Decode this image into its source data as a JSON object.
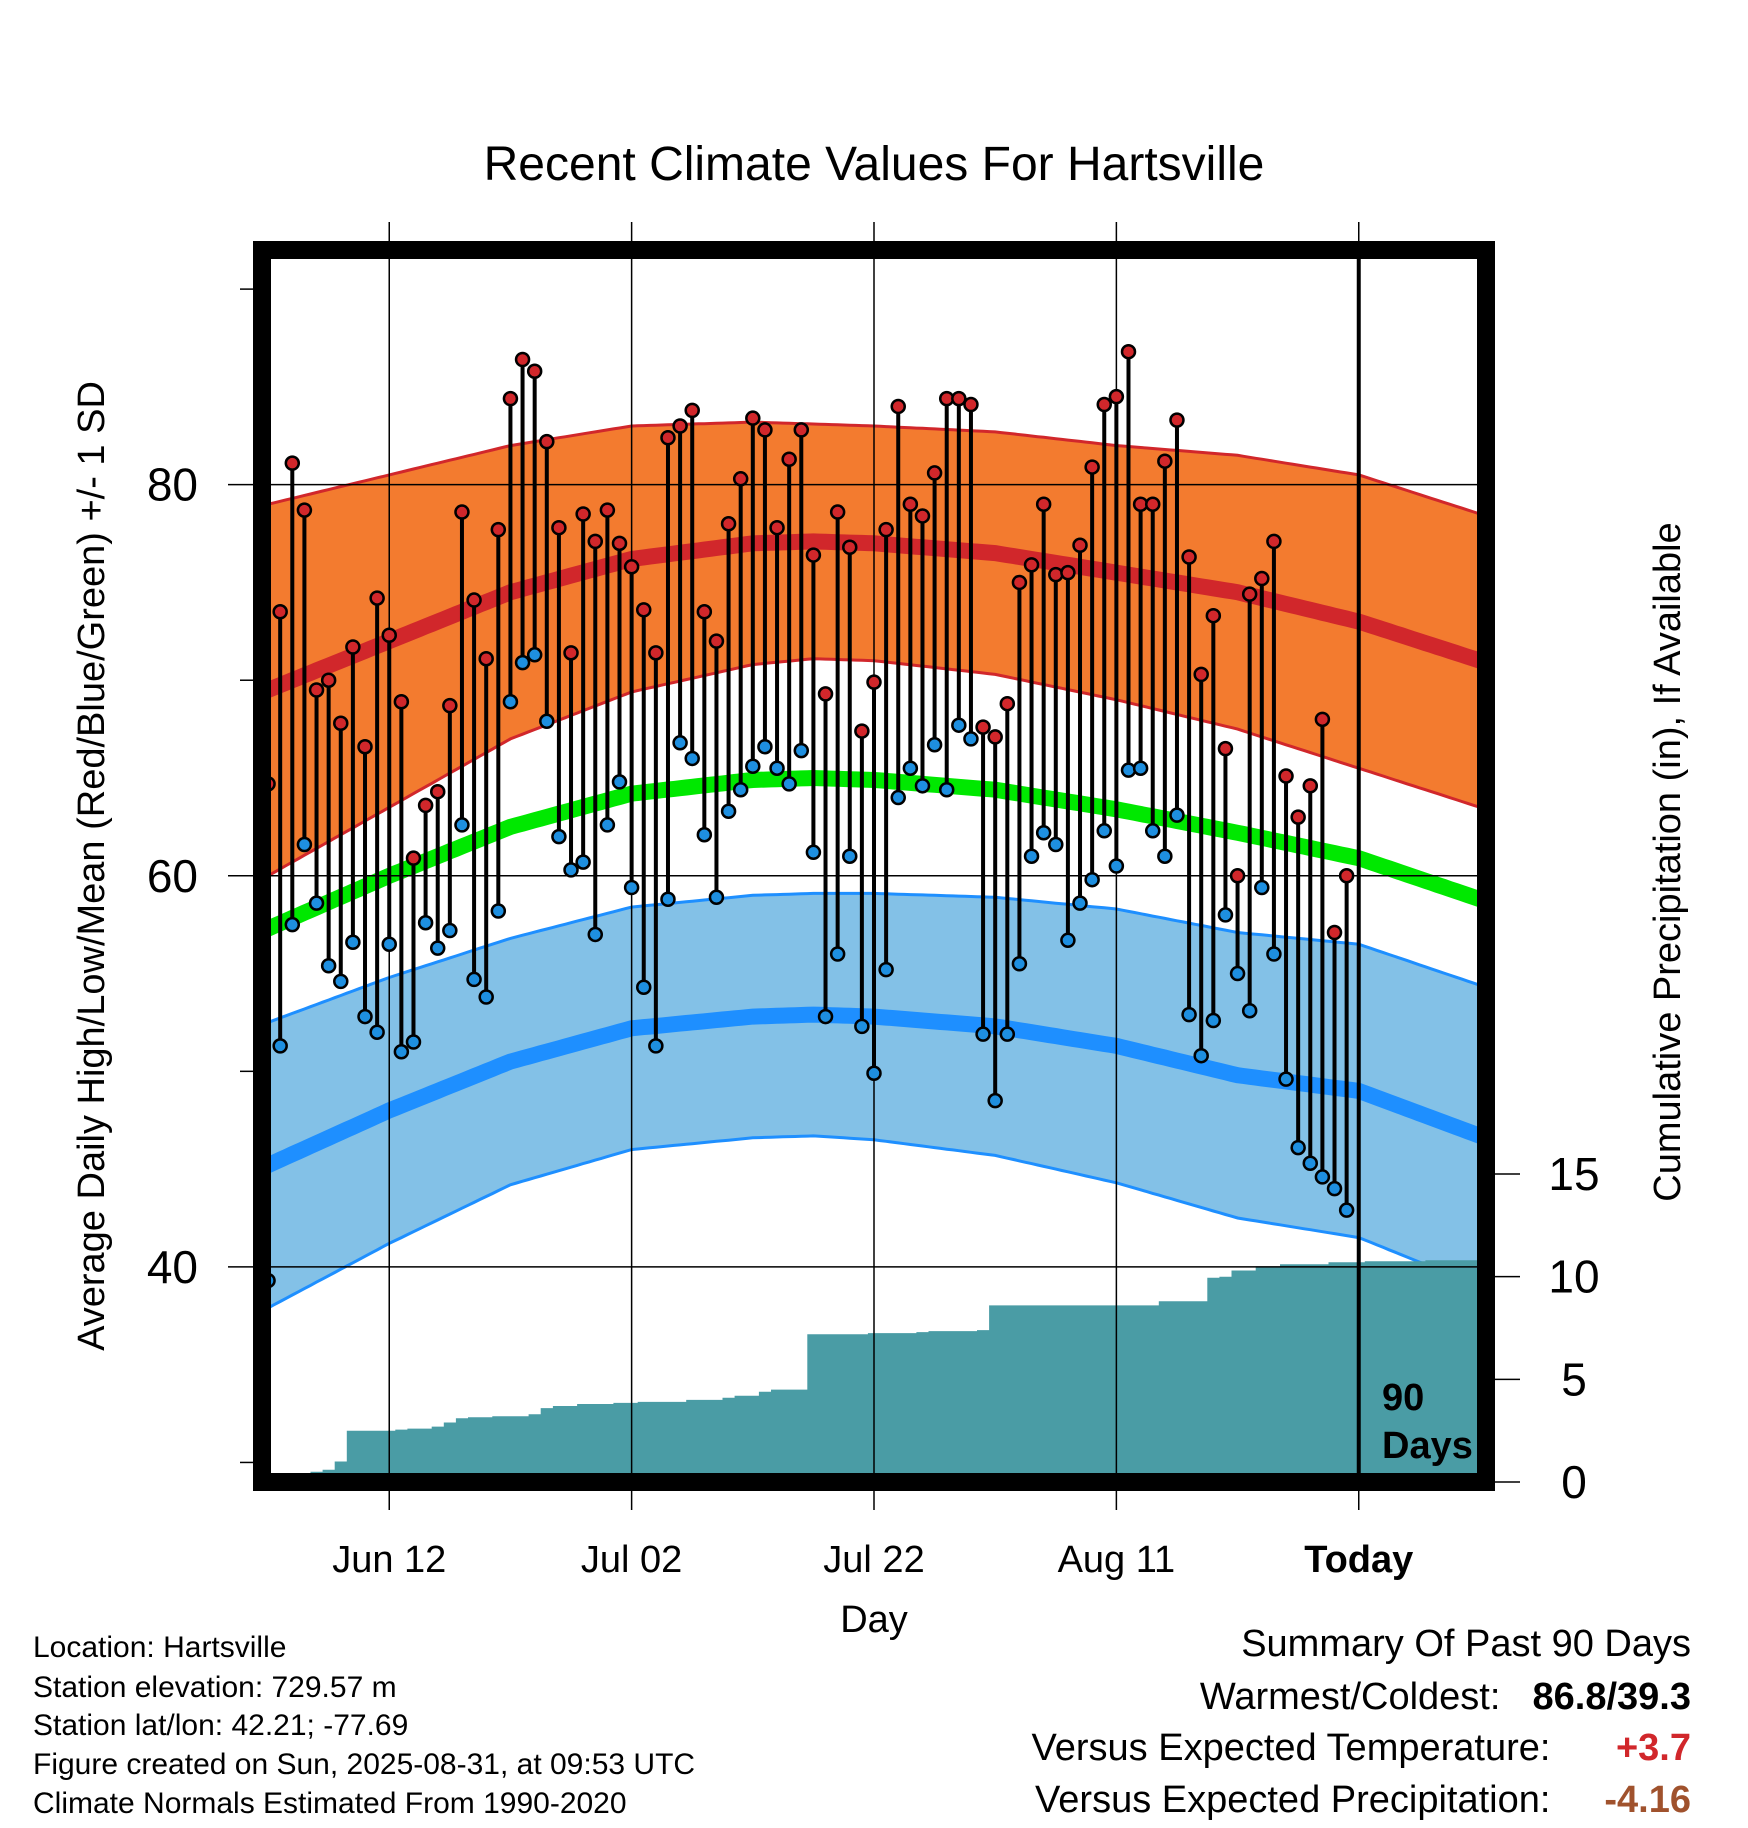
{
  "chart_data": {
    "type": "line",
    "title": "Recent Climate Values For Hartsville",
    "xlabel": "Day",
    "ylabel": "Average Daily High/Low/Mean (Red/Blue/Green) +/- 1 SD",
    "y2label": "Cumulative Precipitation (in), If Available",
    "xticks": [
      {
        "day": 10,
        "label": "Jun 12"
      },
      {
        "day": 30,
        "label": "Jul 02"
      },
      {
        "day": 50,
        "label": "Jul 22"
      },
      {
        "day": 70,
        "label": "Aug 11"
      },
      {
        "day": 90,
        "label": "Today"
      }
    ],
    "xlim": [
      -0.5,
      100.5
    ],
    "ylim": [
      29,
      92
    ],
    "yticks": [
      40,
      60,
      80
    ],
    "y2lim": [
      0,
      60
    ],
    "y2ticks": [
      0,
      5,
      10,
      15
    ],
    "grid": true,
    "today_marker": {
      "day": 90,
      "label_line1": "90",
      "label_line2": "Days"
    },
    "normals": {
      "days": [
        0,
        10,
        20,
        30,
        40,
        45,
        50,
        60,
        70,
        80,
        90,
        100
      ],
      "high": [
        69.5,
        72.0,
        74.5,
        76.2,
        77.0,
        77.1,
        77.0,
        76.5,
        75.5,
        74.5,
        73.0,
        71.0
      ],
      "high_sd": [
        9.5,
        8.5,
        7.5,
        6.8,
        6.2,
        6.0,
        6.0,
        6.2,
        6.5,
        7.0,
        7.5,
        7.5
      ],
      "low": [
        45.2,
        48.0,
        50.5,
        52.2,
        52.8,
        52.9,
        52.8,
        52.3,
        51.3,
        49.8,
        49.0,
        46.7
      ],
      "low_sd": [
        7.3,
        6.8,
        6.3,
        6.2,
        6.2,
        6.2,
        6.3,
        6.6,
        7.0,
        7.3,
        7.5,
        7.7
      ],
      "mean": [
        57.3,
        60.0,
        62.5,
        64.2,
        64.9,
        65.0,
        64.9,
        64.4,
        63.4,
        62.2,
        60.9,
        58.8
      ]
    },
    "series": [
      {
        "name": "Daily High",
        "values": [
          64.7,
          73.5,
          81.1,
          78.7,
          69.5,
          70.0,
          67.8,
          71.7,
          66.6,
          74.2,
          72.3,
          68.9,
          60.9,
          63.6,
          64.3,
          68.7,
          78.6,
          74.1,
          71.1,
          77.7,
          84.4,
          86.4,
          85.8,
          82.2,
          77.8,
          71.4,
          78.5,
          77.1,
          78.7,
          77.0,
          75.8,
          73.6,
          71.4,
          82.4,
          83.0,
          83.8,
          73.5,
          72.0,
          78.0,
          80.3,
          83.4,
          82.8,
          77.8,
          81.3,
          82.8,
          76.4,
          69.3,
          78.6,
          76.8,
          67.4,
          69.9,
          77.7,
          84.0,
          79.0,
          78.4,
          80.6,
          84.4,
          84.4,
          84.1,
          67.6,
          67.1,
          68.8,
          75.0,
          75.9,
          79.0,
          75.4,
          75.5,
          76.9,
          80.9,
          84.1,
          84.5,
          86.8,
          79.0,
          79.0,
          81.2,
          83.3,
          76.3,
          70.3,
          73.3,
          66.5,
          60.0,
          74.4,
          75.2,
          77.1,
          65.1,
          63.0,
          64.6,
          68.0,
          57.1,
          60.0
        ]
      },
      {
        "name": "Daily Low",
        "values": [
          39.3,
          51.3,
          57.5,
          61.6,
          58.6,
          55.4,
          54.6,
          56.6,
          52.8,
          52.0,
          56.5,
          51.0,
          51.5,
          57.6,
          56.3,
          57.2,
          62.6,
          54.7,
          53.8,
          58.2,
          68.9,
          70.9,
          71.3,
          67.9,
          62.0,
          60.3,
          60.7,
          57.0,
          62.6,
          64.8,
          59.4,
          54.3,
          51.3,
          58.8,
          66.8,
          66.0,
          62.1,
          58.9,
          63.3,
          64.4,
          65.6,
          66.6,
          65.5,
          64.7,
          66.4,
          61.2,
          52.8,
          56.0,
          61.0,
          52.3,
          49.9,
          55.2,
          64.0,
          65.5,
          64.6,
          66.7,
          64.4,
          67.7,
          67.0,
          51.9,
          48.5,
          51.9,
          55.5,
          61.0,
          62.2,
          61.6,
          56.7,
          58.6,
          59.8,
          62.3,
          60.5,
          65.4,
          65.5,
          62.3,
          61.0,
          63.1,
          52.9,
          50.8,
          52.6,
          58.0,
          55.0,
          53.1,
          59.4,
          56.0,
          49.6,
          46.1,
          45.3,
          44.6,
          44.0,
          42.9
        ]
      },
      {
        "name": "Cumulative Precipitation",
        "values": [
          0.0,
          0.0,
          0.0,
          0.0,
          0.5,
          0.6,
          1.0,
          2.5,
          2.5,
          2.5,
          2.5,
          2.55,
          2.6,
          2.6,
          2.7,
          2.9,
          3.1,
          3.15,
          3.15,
          3.2,
          3.2,
          3.2,
          3.3,
          3.6,
          3.7,
          3.7,
          3.8,
          3.8,
          3.8,
          3.85,
          3.85,
          3.9,
          3.9,
          3.9,
          3.9,
          4.0,
          4.0,
          4.0,
          4.1,
          4.2,
          4.2,
          4.4,
          4.5,
          4.5,
          4.5,
          7.2,
          7.2,
          7.2,
          7.2,
          7.2,
          7.25,
          7.25,
          7.25,
          7.25,
          7.3,
          7.35,
          7.35,
          7.35,
          7.35,
          7.4,
          8.6,
          8.6,
          8.6,
          8.6,
          8.6,
          8.6,
          8.6,
          8.6,
          8.6,
          8.6,
          8.6,
          8.6,
          8.6,
          8.6,
          8.8,
          8.8,
          8.8,
          8.8,
          9.95,
          10.0,
          10.3,
          10.3,
          10.5,
          10.5,
          10.6,
          10.6,
          10.6,
          10.6,
          10.7,
          10.7,
          10.7,
          10.75,
          10.75,
          10.75,
          10.75,
          10.75,
          10.8,
          10.8,
          10.8,
          10.8,
          10.8
        ]
      }
    ],
    "colors": {
      "high": "#d1272b",
      "high_band": "#f37b2f",
      "low": "#1e8fff",
      "low_band": "#83c1e7",
      "mean": "#00e800",
      "precip": "#4a9ca5",
      "high_dot": "#d1272b",
      "low_dot": "#1e8fe0",
      "frame": "#000000"
    }
  },
  "footer": {
    "location": "Location: Hartsville",
    "elevation": "Station elevation: 729.57 m",
    "latlon": "Station lat/lon: 42.21; -77.69",
    "created": "Figure created on Sun, 2025-08-31, at 09:53 UTC",
    "normals": "Climate Normals Estimated From 1990-2020"
  },
  "summary": {
    "title": "Summary Of Past 90 Days",
    "warm_cold_label": "Warmest/Coldest:",
    "warm_cold_value": "86.8/39.3",
    "temp_label": "Versus Expected Temperature:",
    "temp_value": "+3.7",
    "temp_color": "#d1272b",
    "precip_label": "Versus Expected Precipitation:",
    "precip_value": "-4.16",
    "precip_color": "#a0522d"
  }
}
